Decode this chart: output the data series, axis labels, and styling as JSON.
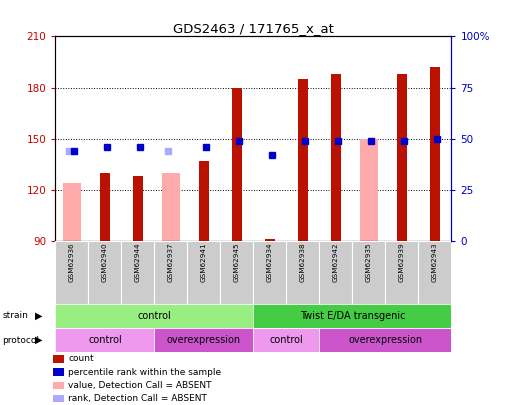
{
  "title": "GDS2463 / 171765_x_at",
  "samples": [
    "GSM62936",
    "GSM62940",
    "GSM62944",
    "GSM62937",
    "GSM62941",
    "GSM62945",
    "GSM62934",
    "GSM62938",
    "GSM62942",
    "GSM62935",
    "GSM62939",
    "GSM62943"
  ],
  "count_values": [
    null,
    130,
    128,
    null,
    137,
    180,
    91,
    185,
    188,
    null,
    188,
    192
  ],
  "absent_value_values": [
    124,
    null,
    null,
    130,
    null,
    null,
    null,
    null,
    null,
    150,
    null,
    null
  ],
  "rank_values": [
    44,
    46,
    46,
    null,
    46,
    49,
    42,
    49,
    49,
    49,
    49,
    50
  ],
  "absent_rank_values": [
    44,
    null,
    null,
    44,
    null,
    null,
    null,
    null,
    null,
    null,
    null,
    null
  ],
  "ylim_left": [
    90,
    210
  ],
  "ylim_right": [
    0,
    100
  ],
  "yticks_left": [
    90,
    120,
    150,
    180,
    210
  ],
  "yticks_right": [
    0,
    25,
    50,
    75,
    100
  ],
  "ytick_labels_right": [
    "0",
    "25",
    "50",
    "75",
    "100%"
  ],
  "strain_groups": [
    {
      "label": "control",
      "start": 0,
      "end": 6,
      "color": "#98EE82"
    },
    {
      "label": "Twist E/DA transgenic",
      "start": 6,
      "end": 12,
      "color": "#44CC44"
    }
  ],
  "protocol_groups": [
    {
      "label": "control",
      "start": 0,
      "end": 3,
      "color": "#EE99EE"
    },
    {
      "label": "overexpression",
      "start": 3,
      "end": 6,
      "color": "#CC55CC"
    },
    {
      "label": "control",
      "start": 6,
      "end": 8,
      "color": "#EE99EE"
    },
    {
      "label": "overexpression",
      "start": 8,
      "end": 12,
      "color": "#CC55CC"
    }
  ],
  "color_count": "#BB1100",
  "color_rank": "#0000CC",
  "color_absent_value": "#FFAAAA",
  "color_absent_rank": "#AAAAFF",
  "legend_items": [
    {
      "label": "count",
      "color": "#BB1100"
    },
    {
      "label": "percentile rank within the sample",
      "color": "#0000CC"
    },
    {
      "label": "value, Detection Call = ABSENT",
      "color": "#FFAAAA"
    },
    {
      "label": "rank, Detection Call = ABSENT",
      "color": "#AAAAFF"
    }
  ],
  "left_tick_color": "#CC0000",
  "right_tick_color": "#0000BB"
}
